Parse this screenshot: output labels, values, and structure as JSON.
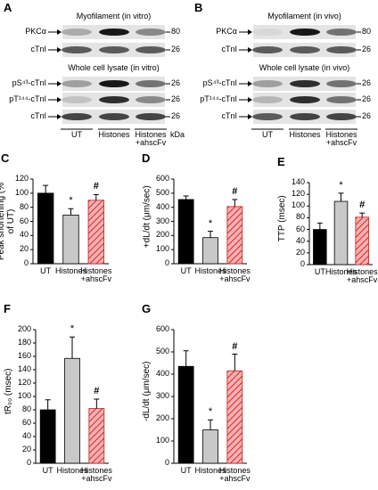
{
  "blots": [
    {
      "label": "A",
      "sections": [
        {
          "title": "Myofilament (in vitro)",
          "rows": [
            {
              "name": "PKCα",
              "kda": 80
            },
            {
              "name": "cTnI",
              "kda": 26
            }
          ]
        },
        {
          "title": "Whole cell lysate (in vitro)",
          "rows": [
            {
              "name": "pS⁴³-cTnI",
              "kda": 26
            },
            {
              "name": "pT¹⁴⁴-cTnI",
              "kda": 26
            },
            {
              "name": "cTnI",
              "kda": 26
            }
          ]
        }
      ],
      "lanes": [
        "UT",
        "Histones",
        "Histones +ahscFv"
      ],
      "unit": "kDa"
    },
    {
      "label": "B",
      "sections": [
        {
          "title": "Myofilament (in vivo)",
          "rows": [
            {
              "name": "PKCα",
              "kda": 80
            },
            {
              "name": "cTnI",
              "kda": 26
            }
          ]
        },
        {
          "title": "Whole cell lysate (in vivo)",
          "rows": [
            {
              "name": "pS⁴³-cTnI",
              "kda": 26
            },
            {
              "name": "pT¹⁴⁴-cTnI",
              "kda": 26
            },
            {
              "name": "cTnI",
              "kda": 26
            }
          ]
        }
      ],
      "lanes": [
        "UT",
        "Histones",
        "Histones +ahscFv"
      ]
    }
  ],
  "chart_data": [
    {
      "type": "bar",
      "label": "C",
      "ylabel": "Peak shortening (% of UT)",
      "categories": [
        "UT",
        "Histones",
        "Histones +ahscFv"
      ],
      "values": [
        100,
        69,
        90
      ],
      "errors": [
        11,
        9,
        8
      ],
      "markers": [
        null,
        "*",
        "#"
      ],
      "colors": [
        "#000000",
        "#c8c8c8",
        "#f7b0b0"
      ],
      "hatch": [
        false,
        false,
        true
      ],
      "ylim": [
        0,
        120
      ],
      "yticks": [
        0,
        20,
        40,
        60,
        80,
        100,
        120
      ]
    },
    {
      "type": "bar",
      "label": "D",
      "ylabel": "+dL/dt (μm/sec)",
      "categories": [
        "UT",
        "Histones",
        "Histones +ahscFv"
      ],
      "values": [
        455,
        185,
        405
      ],
      "errors": [
        25,
        45,
        50
      ],
      "markers": [
        null,
        "*",
        "#"
      ],
      "colors": [
        "#000000",
        "#c8c8c8",
        "#f7b0b0"
      ],
      "hatch": [
        false,
        false,
        true
      ],
      "ylim": [
        0,
        600
      ],
      "yticks": [
        0,
        100,
        200,
        300,
        400,
        500,
        600
      ]
    },
    {
      "type": "bar",
      "label": "E",
      "ylabel": "TTP (msec)",
      "categories": [
        "UT",
        "Histones",
        "Histones +ahscFv"
      ],
      "values": [
        60,
        108,
        81
      ],
      "errors": [
        11,
        14,
        7
      ],
      "markers": [
        null,
        "*",
        "#"
      ],
      "colors": [
        "#000000",
        "#c8c8c8",
        "#f7b0b0"
      ],
      "hatch": [
        false,
        false,
        true
      ],
      "ylim": [
        0,
        140
      ],
      "yticks": [
        0,
        20,
        40,
        60,
        80,
        100,
        120,
        140
      ]
    },
    {
      "type": "bar",
      "label": "F",
      "ylabel": "tR₉₀ (msec)",
      "categories": [
        "UT",
        "Histones",
        "Histones +ahscFv"
      ],
      "values": [
        80,
        157,
        82
      ],
      "errors": [
        15,
        32,
        14
      ],
      "markers": [
        null,
        "*",
        "#"
      ],
      "colors": [
        "#000000",
        "#c8c8c8",
        "#f7b0b0"
      ],
      "hatch": [
        false,
        false,
        true
      ],
      "ylim": [
        0,
        200
      ],
      "yticks": [
        0,
        20,
        40,
        60,
        80,
        100,
        120,
        140,
        160,
        180,
        200
      ]
    },
    {
      "type": "bar",
      "label": "G",
      "ylabel": "-dL/dt (μm/sec)",
      "categories": [
        "UT",
        "Histones",
        "Histones +ahscFv"
      ],
      "values": [
        435,
        150,
        415
      ],
      "errors": [
        70,
        45,
        75
      ],
      "markers": [
        null,
        "*",
        "#"
      ],
      "colors": [
        "#000000",
        "#c8c8c8",
        "#f7b0b0"
      ],
      "hatch": [
        false,
        false,
        true
      ],
      "ylim": [
        0,
        600
      ],
      "yticks": [
        0,
        100,
        200,
        300,
        400,
        500,
        600
      ]
    }
  ]
}
